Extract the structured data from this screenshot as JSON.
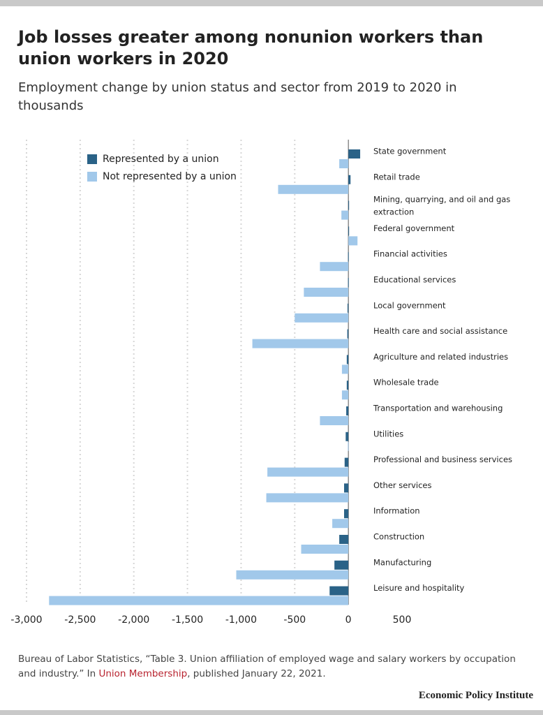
{
  "chart_data": {
    "type": "hbar",
    "title": "Job losses greater among nonunion workers than union workers in 2020",
    "subtitle": "Employment change by union status and sector from 2019 to 2020 in thousands",
    "categories": [
      "State government",
      "Retail trade",
      "Mining, quarrying, and oil and gas extraction",
      "Federal government",
      "Financial activities",
      "Educational services",
      "Local government",
      "Health care and social assistance",
      "Agriculture and related industries",
      "Wholesale trade",
      "Transportation and warehousing",
      "Utilities",
      "Professional and business services",
      "Other services",
      "Information",
      "Construction",
      "Manufacturing",
      "Leisure and hospitality"
    ],
    "series": [
      {
        "name": "Represented by a union",
        "color": "#2a6287",
        "values": [
          110,
          20,
          5,
          5,
          -3,
          -3,
          -8,
          -10,
          -15,
          -15,
          -20,
          -25,
          -35,
          -40,
          -40,
          -85,
          -130,
          -175
        ]
      },
      {
        "name": "Not represented by a union",
        "color": "#a1c8ea",
        "values": [
          -85,
          -655,
          -65,
          85,
          -265,
          -415,
          -500,
          -895,
          -60,
          -60,
          -265,
          -5,
          -755,
          -765,
          -150,
          -440,
          -1045,
          -2790
        ]
      }
    ],
    "xlim": [
      -3000,
      500
    ],
    "xticks": [
      {
        "value": -3000,
        "label": "-3,000"
      },
      {
        "value": -2500,
        "label": "-2,500"
      },
      {
        "value": -2000,
        "label": "-2,000"
      },
      {
        "value": -1500,
        "label": "-1,500"
      },
      {
        "value": -1000,
        "label": "-1,000"
      },
      -500,
      0,
      500
    ],
    "grid": true,
    "legend": "top-left",
    "source": {
      "text": "Bureau of Labor Statistics, “Table 3. Union affiliation of employed wage and salary workers by occupation and industry.” In ",
      "link": "Union Membership",
      "after": ", published January 22, 2021."
    },
    "publisher": "Economic Policy Institute"
  }
}
